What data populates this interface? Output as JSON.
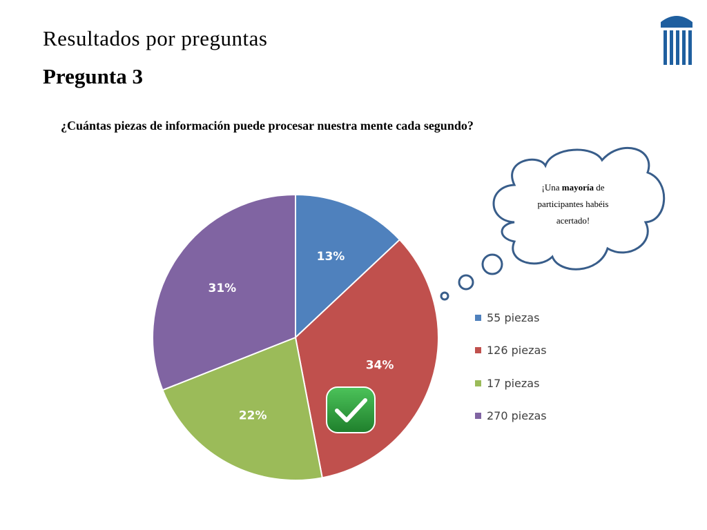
{
  "header": {
    "title": "Resultados por preguntas",
    "subtitle": "Pregunta 3"
  },
  "question": "¿Cuántas piezas de información puede procesar nuestra mente cada segundo?",
  "bubble": {
    "prefix": "¡Una ",
    "emphasis": "mayoría",
    "suffix": " de participantes habéis acertado!"
  },
  "logo_icon": "building-columns-icon",
  "correct_icon": "check-icon",
  "colors": {
    "accent_blue": "#4F81BD",
    "bubble_stroke": "#385D8A",
    "check_green": "#2E9A3A"
  },
  "chart_data": {
    "type": "pie",
    "correct_category": "126 piezas",
    "series": [
      {
        "label": "55 piezas",
        "value": 13,
        "display": "13%",
        "color": "#4F81BD"
      },
      {
        "label": "126 piezas",
        "value": 34,
        "display": "34%",
        "color": "#C0504D"
      },
      {
        "label": "17 piezas",
        "value": 22,
        "display": "22%",
        "color": "#9BBB59"
      },
      {
        "label": "270 piezas",
        "value": 31,
        "display": "31%",
        "color": "#8064A2"
      }
    ],
    "legend_position": "right"
  }
}
